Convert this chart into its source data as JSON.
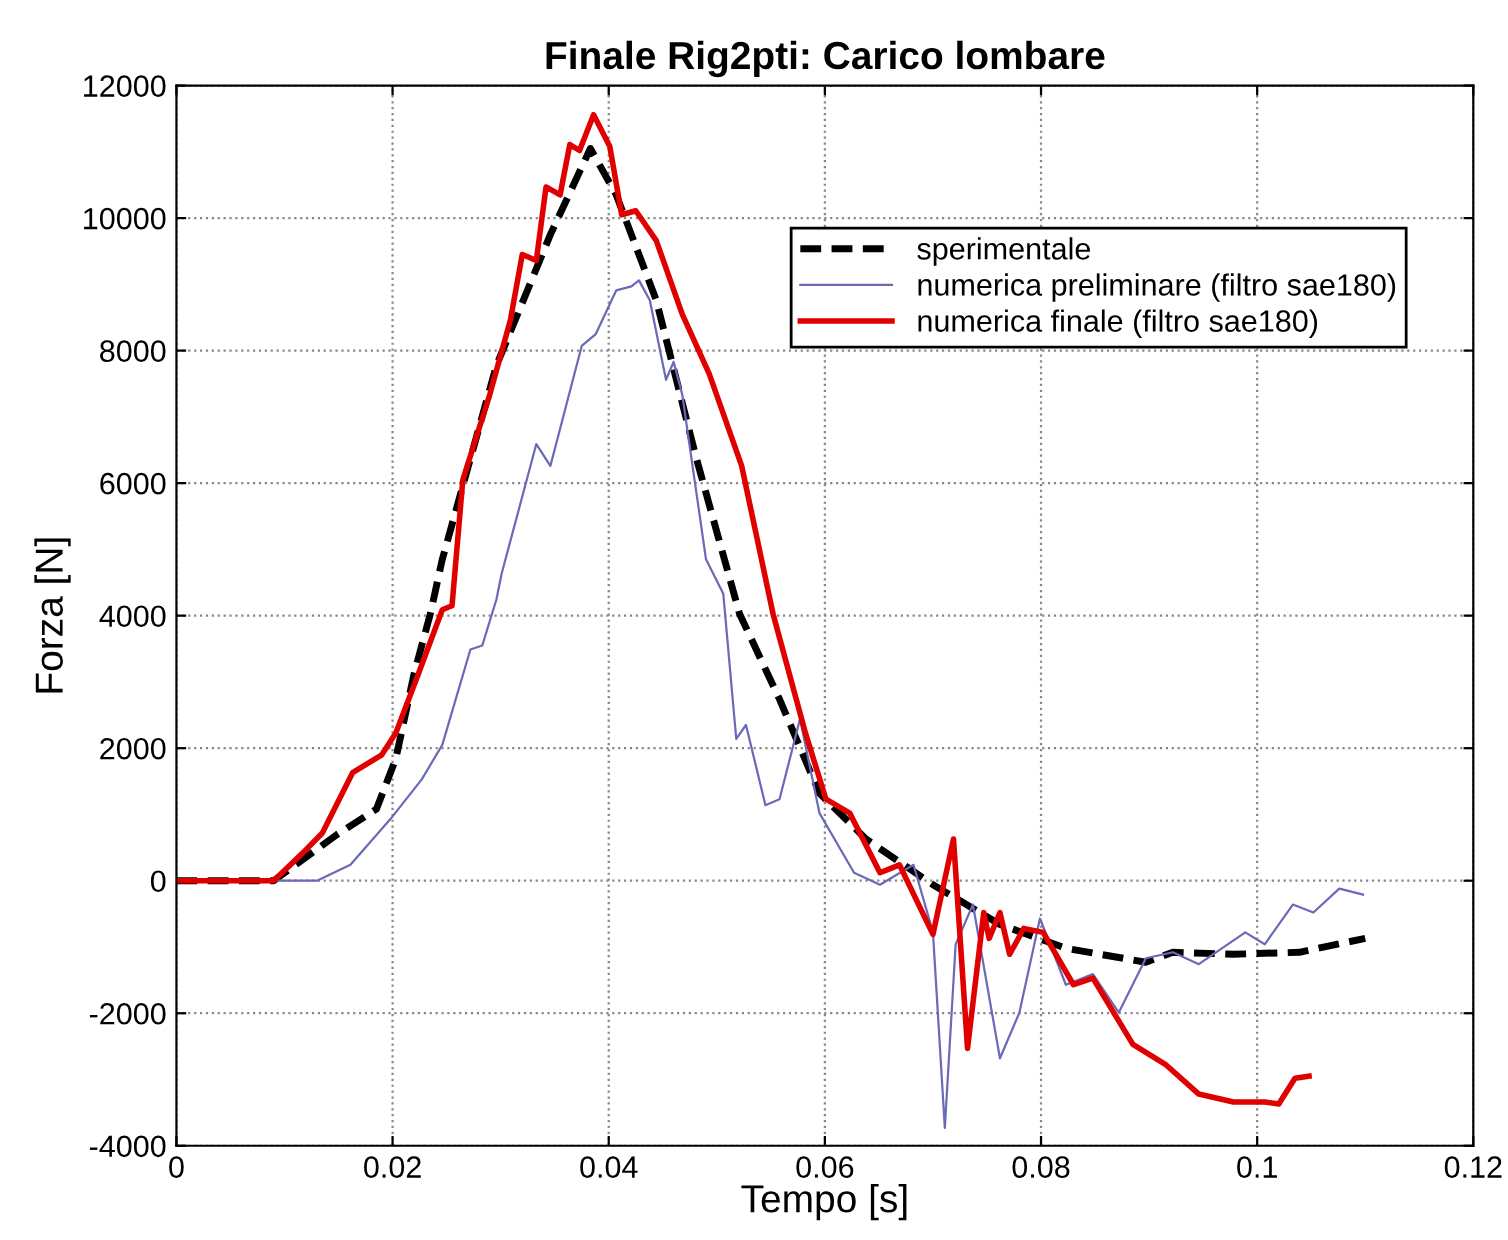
{
  "chart_data": {
    "type": "line",
    "title": "Finale Rig2pti: Carico lombare",
    "xlabel": "Tempo [s]",
    "ylabel": "Forza [N]",
    "xlim": [
      0,
      0.12
    ],
    "ylim": [
      -4000,
      12000
    ],
    "xticks": [
      0,
      0.02,
      0.04,
      0.06,
      0.08,
      0.1,
      0.12
    ],
    "yticks": [
      -4000,
      -2000,
      0,
      2000,
      4000,
      6000,
      8000,
      10000,
      12000
    ],
    "grid": true,
    "legend": "top right",
    "series": [
      {
        "name": "sperimentale",
        "color": "#000000",
        "line_style": "dashed",
        "x": [
          0,
          0.009,
          0.0148,
          0.0185,
          0.0203,
          0.022,
          0.0235,
          0.0246,
          0.0296,
          0.0346,
          0.0383,
          0.0407,
          0.0444,
          0.048,
          0.0521,
          0.0558,
          0.0595,
          0.0638,
          0.07,
          0.0762,
          0.0823,
          0.0897,
          0.0922,
          0.0978,
          0.1039,
          0.11
        ],
        "values": [
          0,
          0,
          690,
          1080,
          1840,
          3130,
          4030,
          4850,
          7770,
          9750,
          11050,
          10350,
          8760,
          6440,
          4030,
          2740,
          1320,
          630,
          -60,
          -660,
          -1020,
          -1230,
          -1080,
          -1110,
          -1080,
          -870
        ]
      },
      {
        "name": "numerica preliminare (filtro sae180)",
        "color": "#6a6ab8",
        "line_style": "solid",
        "x": [
          0,
          0.013,
          0.0161,
          0.0198,
          0.0227,
          0.0246,
          0.0272,
          0.0283,
          0.0296,
          0.0301,
          0.0333,
          0.0346,
          0.0375,
          0.0388,
          0.0407,
          0.0421,
          0.0428,
          0.0438,
          0.0453,
          0.046,
          0.0468,
          0.049,
          0.0506,
          0.0518,
          0.0527,
          0.0545,
          0.0558,
          0.0577,
          0.0595,
          0.0627,
          0.0651,
          0.0682,
          0.07,
          0.0711,
          0.0721,
          0.0737,
          0.0762,
          0.078,
          0.0799,
          0.0823,
          0.0848,
          0.0872,
          0.0897,
          0.0922,
          0.0946,
          0.0989,
          0.1007,
          0.1033,
          0.1052,
          0.1076,
          0.1098
        ],
        "values": [
          0,
          0,
          240,
          930,
          1530,
          2050,
          3490,
          3550,
          4240,
          4640,
          6590,
          6260,
          8070,
          8250,
          8910,
          8970,
          9060,
          8760,
          7560,
          7830,
          7340,
          4850,
          4330,
          2140,
          2350,
          1140,
          1230,
          2440,
          1020,
          120,
          -60,
          240,
          -780,
          -3730,
          -960,
          -360,
          -2680,
          -1990,
          -570,
          -1570,
          -1410,
          -1990,
          -1170,
          -1080,
          -1260,
          -780,
          -960,
          -360,
          -480,
          -120,
          -210
        ]
      },
      {
        "name": "numerica finale (filtro sae180)",
        "color": "#e00000",
        "line_style": "solid",
        "x": [
          0,
          0.009,
          0.0117,
          0.0135,
          0.0163,
          0.019,
          0.0203,
          0.0222,
          0.0246,
          0.0255,
          0.0265,
          0.029,
          0.0309,
          0.032,
          0.0333,
          0.0342,
          0.0355,
          0.0364,
          0.0373,
          0.0386,
          0.0401,
          0.0412,
          0.0425,
          0.0444,
          0.0468,
          0.0493,
          0.0523,
          0.0552,
          0.0582,
          0.0601,
          0.0623,
          0.0651,
          0.0669,
          0.07,
          0.0719,
          0.0732,
          0.0747,
          0.0752,
          0.0762,
          0.0771,
          0.0784,
          0.0802,
          0.083,
          0.0848,
          0.0885,
          0.0915,
          0.0946,
          0.0978,
          0.1007,
          0.102,
          0.1035,
          0.1048
        ],
        "values": [
          0,
          0,
          420,
          720,
          1630,
          1900,
          2230,
          3040,
          4090,
          4150,
          6050,
          7340,
          8460,
          9450,
          9360,
          10470,
          10350,
          11110,
          11020,
          11560,
          11080,
          10050,
          10110,
          9660,
          8550,
          7650,
          6260,
          4030,
          2230,
          1230,
          1020,
          120,
          240,
          -810,
          630,
          -2530,
          -480,
          -870,
          -480,
          -1110,
          -720,
          -780,
          -1570,
          -1470,
          -2470,
          -2770,
          -3220,
          -3340,
          -3340,
          -3370,
          -2980,
          -2950
        ]
      }
    ]
  }
}
